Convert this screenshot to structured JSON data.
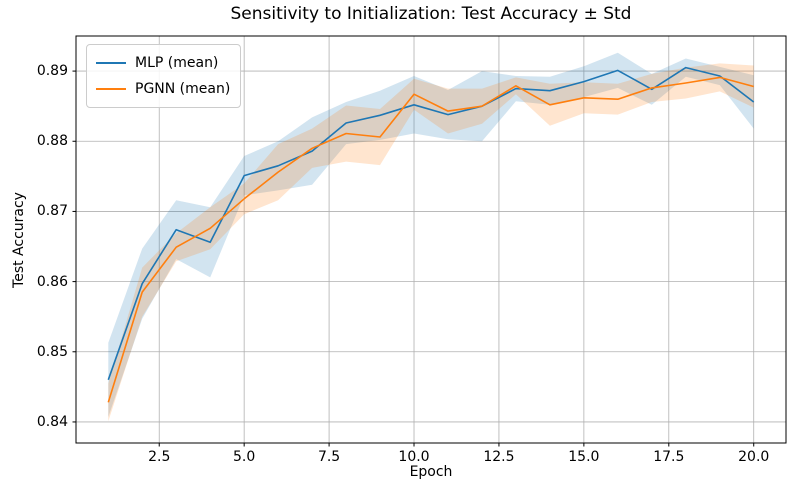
{
  "figure": {
    "title": "Sensitivity to Initialization: Test Accuracy ± Std",
    "xlabel": "Epoch",
    "ylabel": "Test Accuracy"
  },
  "legend": {
    "position": "upper left",
    "items": [
      {
        "label": "MLP (mean)",
        "color": "#1f77b4"
      },
      {
        "label": "PGNN (mean)",
        "color": "#ff7f0e"
      }
    ]
  },
  "chart_data": {
    "type": "line",
    "title": "Sensitivity to Initialization: Test Accuracy ± Std",
    "xlabel": "Epoch",
    "ylabel": "Test Accuracy",
    "grid": true,
    "grid_color": "#b0b0b0",
    "background": "#ffffff",
    "legend_position": "upper left",
    "xlim": [
      0.05,
      20.95
    ],
    "ylim": [
      0.837,
      0.895
    ],
    "xticks": {
      "values": [
        2.5,
        5,
        7.5,
        10,
        12.5,
        15,
        17.5,
        20
      ],
      "labels": [
        "2.5",
        "5.0",
        "7.5",
        "10.0",
        "12.5",
        "15.0",
        "17.5",
        "20.0"
      ]
    },
    "yticks": {
      "values": [
        0.84,
        0.85,
        0.86,
        0.87,
        0.88,
        0.89
      ],
      "labels": [
        "0.84",
        "0.85",
        "0.86",
        "0.87",
        "0.88",
        "0.89"
      ]
    },
    "x": [
      1,
      2,
      3,
      4,
      5,
      6,
      7,
      8,
      9,
      10,
      11,
      12,
      13,
      14,
      15,
      16,
      17,
      18,
      19,
      20
    ],
    "series": [
      {
        "name": "MLP (mean)",
        "slug": "mlp",
        "color": "#1f77b4",
        "band_alpha": 0.2,
        "mean": [
          0.846,
          0.8597,
          0.8674,
          0.8656,
          0.8751,
          0.8765,
          0.8786,
          0.8826,
          0.8837,
          0.8852,
          0.8838,
          0.885,
          0.8875,
          0.8872,
          0.8885,
          0.8901,
          0.8874,
          0.8905,
          0.8893,
          0.8856
        ],
        "std": [
          0.0053,
          0.005,
          0.0042,
          0.005,
          0.0028,
          0.0035,
          0.0048,
          0.003,
          0.0035,
          0.0041,
          0.0035,
          0.005,
          0.0018,
          0.002,
          0.0022,
          0.0025,
          0.0022,
          0.0013,
          0.0013,
          0.0038
        ]
      },
      {
        "name": "PGNN (mean)",
        "slug": "pgnn",
        "color": "#ff7f0e",
        "band_alpha": 0.2,
        "mean": [
          0.8428,
          0.8585,
          0.8649,
          0.8676,
          0.8718,
          0.8756,
          0.879,
          0.8811,
          0.8806,
          0.8867,
          0.8843,
          0.885,
          0.8879,
          0.8852,
          0.8862,
          0.886,
          0.8876,
          0.8883,
          0.8891,
          0.8878
        ],
        "std": [
          0.0027,
          0.0035,
          0.002,
          0.003,
          0.0022,
          0.004,
          0.0028,
          0.004,
          0.004,
          0.0022,
          0.0032,
          0.0025,
          0.0012,
          0.003,
          0.0022,
          0.0022,
          0.002,
          0.0022,
          0.002,
          0.003
        ]
      }
    ]
  }
}
